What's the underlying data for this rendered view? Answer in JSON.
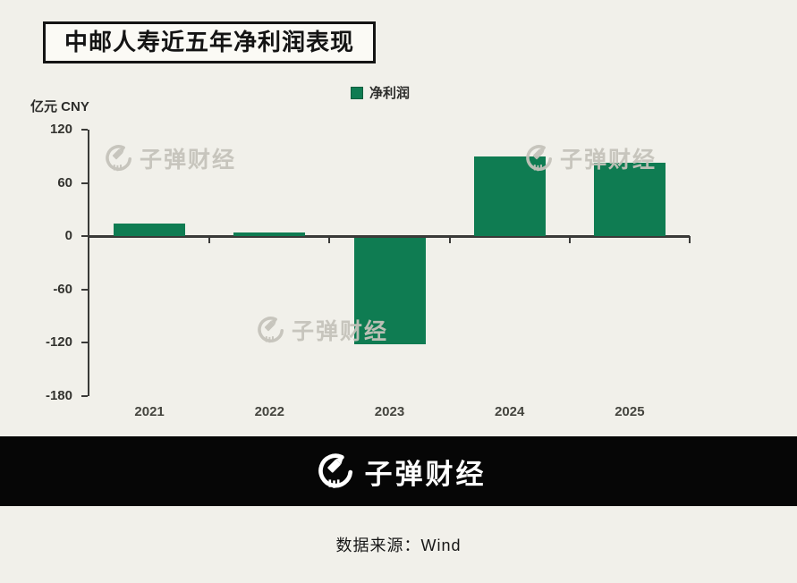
{
  "page": {
    "background": "#f1f0ea"
  },
  "header": {
    "title": "中邮人寿近五年净利润表现"
  },
  "legend": {
    "label": "净利润",
    "color": "#0f7c52"
  },
  "unit_label": "亿元 CNY",
  "watermark": {
    "text": "子弹财经"
  },
  "footer": {
    "brand": "子弹财经",
    "source": "数据来源：Wind"
  },
  "chart_data": {
    "type": "bar",
    "title": "中邮人寿近五年净利润表现",
    "categories": [
      "2021",
      "2022",
      "2023",
      "2024",
      "2025"
    ],
    "series": [
      {
        "name": "净利润",
        "values": [
          14,
          4,
          -120,
          90,
          83
        ]
      }
    ],
    "xlabel": "",
    "ylabel": "亿元 CNY",
    "ylim": [
      -180,
      120
    ],
    "y_ticks": [
      120,
      60,
      0,
      -60,
      -120,
      -180
    ],
    "bar_color": "#0f7c52",
    "axis_color": "#3a3a38",
    "legend_position": "top-center",
    "grid": false
  }
}
